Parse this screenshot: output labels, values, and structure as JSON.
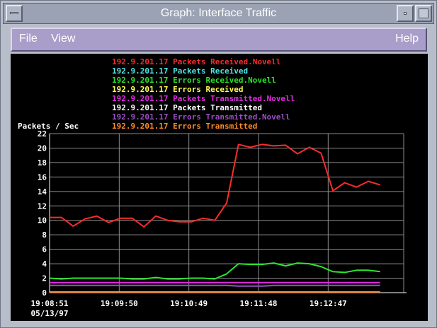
{
  "window": {
    "title": "Graph: Interface Traffic",
    "icons": {
      "menu": "window-menu-icon",
      "minimize": "minimize-icon",
      "maximize": "maximize-icon"
    }
  },
  "menubar": {
    "file": "File",
    "view": "View",
    "help": "Help"
  },
  "colors": {
    "plot_background": "#000000",
    "grid": "#8c8c8c",
    "axis_text": "#ffffff"
  },
  "chart_data": {
    "type": "line",
    "ylabel": "Packets / Sec",
    "ylim": [
      0,
      22
    ],
    "yticks": [
      0,
      2,
      4,
      6,
      8,
      10,
      12,
      14,
      16,
      18,
      20,
      22
    ],
    "xlim": [
      "19:08:51",
      "19:13:51"
    ],
    "xticks": [
      "19:08:51",
      "19:09:50",
      "19:10:49",
      "19:11:48",
      "19:12:47"
    ],
    "date": "05/13/97",
    "grid": true,
    "legend_position": "top",
    "sample_times": [
      "19:08:51",
      "19:09:01",
      "19:09:11",
      "19:09:21",
      "19:09:31",
      "19:09:41",
      "19:09:51",
      "19:10:01",
      "19:10:11",
      "19:10:21",
      "19:10:31",
      "19:10:41",
      "19:10:51",
      "19:11:01",
      "19:11:11",
      "19:11:21",
      "19:11:31",
      "19:11:41",
      "19:11:51",
      "19:12:01",
      "19:12:11",
      "19:12:21",
      "19:12:31",
      "19:12:41",
      "19:12:51",
      "19:13:01",
      "19:13:11",
      "19:13:21",
      "19:13:31",
      "19:13:41",
      "19:13:51"
    ],
    "series": [
      {
        "name": "192.9.201.17 Packets Received.Novell",
        "host": "192.9.201.17",
        "metric": "Packets Received.Novell",
        "color": "#ff2a2a",
        "values": [
          10.4,
          10.4,
          9.2,
          10.2,
          10.6,
          9.7,
          10.3,
          10.3,
          9.1,
          10.6,
          10.0,
          9.8,
          9.8,
          10.3,
          10.0,
          12.4,
          20.5,
          20.1,
          20.5,
          20.3,
          20.4,
          19.2,
          20.1,
          19.3,
          14.1,
          15.2,
          14.6,
          15.4,
          14.9,
          null,
          null
        ]
      },
      {
        "name": "192.9.201.17 Packets Received",
        "host": "192.9.201.17",
        "metric": "Packets Received",
        "color": "#54e6e6",
        "values": []
      },
      {
        "name": "192.9.201.17 Errors Received.Novell",
        "host": "192.9.201.17",
        "metric": "Errors Received.Novell",
        "color": "#2ae62a",
        "values": [
          2.0,
          1.9,
          2.0,
          2.0,
          2.0,
          2.0,
          2.0,
          1.9,
          1.9,
          2.1,
          1.9,
          1.9,
          2.0,
          2.0,
          1.9,
          2.6,
          4.0,
          3.9,
          3.9,
          4.1,
          3.7,
          4.1,
          4.0,
          3.6,
          2.9,
          2.8,
          3.1,
          3.1,
          2.9,
          null,
          null
        ]
      },
      {
        "name": "192.9.201.17 Errors Received",
        "host": "192.9.201.17",
        "metric": "Errors Received",
        "color": "#ffff55",
        "values": []
      },
      {
        "name": "192.9.201.17 Packets Transmitted.Novell",
        "host": "192.9.201.17",
        "metric": "Packets Transmitted.Novell",
        "color": "#e02ae0",
        "values": [
          1.4,
          1.4,
          1.4,
          1.4,
          1.4,
          1.4,
          1.4,
          1.4,
          1.4,
          1.4,
          1.4,
          1.4,
          1.4,
          1.4,
          1.4,
          1.4,
          1.4,
          1.4,
          1.4,
          1.4,
          1.4,
          1.4,
          1.4,
          1.4,
          1.4,
          1.4,
          1.4,
          1.4,
          1.4,
          null,
          null
        ]
      },
      {
        "name": "192.9.201.17 Packets Transmitted",
        "host": "192.9.201.17",
        "metric": "Packets Transmitted",
        "color": "#ffffff",
        "values": []
      },
      {
        "name": "192.9.201.17 Errors Transmitted.Novell",
        "host": "192.9.201.17",
        "metric": "Errors Transmitted.Novell",
        "color": "#9a50c8",
        "values": [
          1.0,
          1.0,
          1.0,
          1.0,
          1.0,
          1.0,
          1.0,
          1.0,
          1.0,
          1.0,
          1.0,
          1.0,
          1.0,
          1.0,
          1.0,
          1.0,
          0.9,
          0.9,
          0.9,
          1.0,
          1.0,
          1.0,
          1.0,
          1.0,
          1.0,
          1.0,
          1.0,
          1.0,
          1.0,
          null,
          null
        ]
      },
      {
        "name": "192.9.201.17 Errors Transmitted",
        "host": "192.9.201.17",
        "metric": "Errors Transmitted",
        "color": "#ff8a2a",
        "values": [
          0.1,
          0.1,
          0.1,
          0.1,
          0.1,
          0.1,
          0.1,
          0.1,
          0.1,
          0.1,
          0.1,
          0.1,
          0.1,
          0.1,
          0.1,
          0.1,
          0.1,
          0.1,
          0.1,
          0.1,
          0.1,
          0.1,
          0.1,
          0.1,
          0.1,
          0.1,
          0.1,
          0.1,
          0.1,
          null,
          null
        ]
      }
    ]
  }
}
